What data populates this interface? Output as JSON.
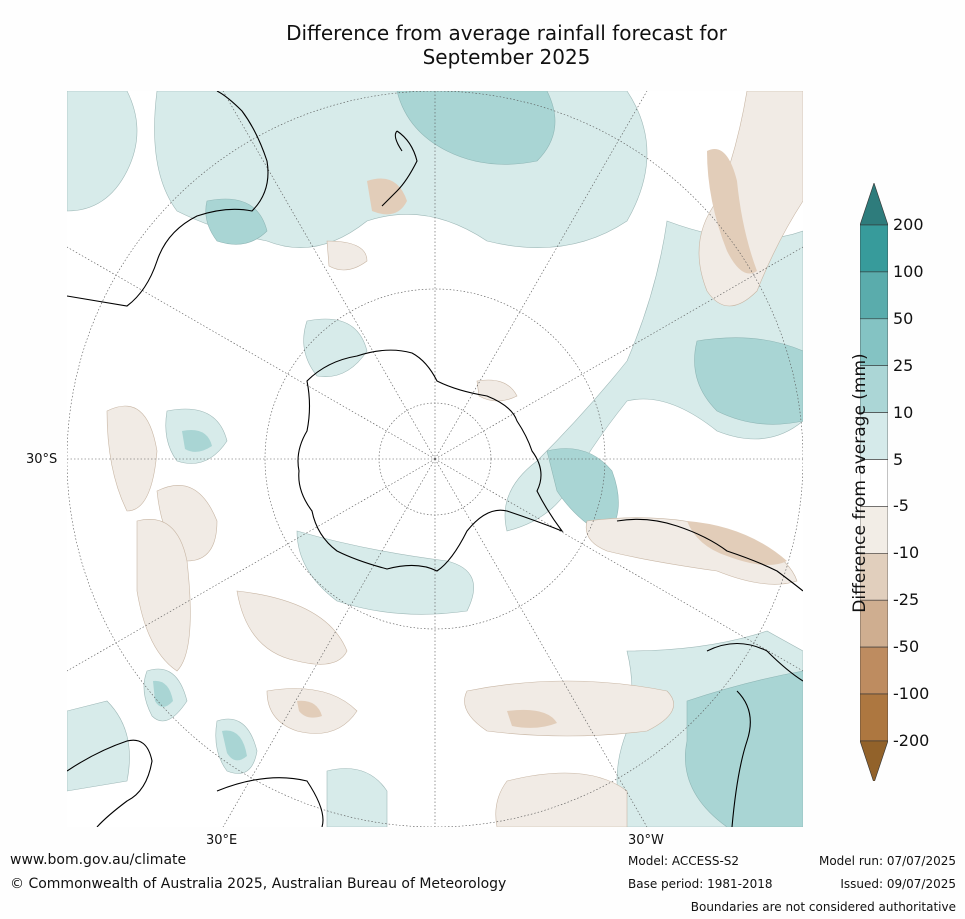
{
  "title": {
    "line1": "Difference from average rainfall forecast for",
    "line2": "September 2025"
  },
  "map": {
    "lat_label_left": "30°S",
    "lon_label_bottom_left": "30°E",
    "lon_label_bottom_right": "30°W",
    "colors": {
      "land_outline": "#000000",
      "grid": "#555555",
      "wet_light": "#d7ebea",
      "wet_mid": "#a9d5d4",
      "wet_strong": "#82c2c2",
      "dry_light": "#f1ebe5",
      "dry_mid": "#e2cdb9"
    }
  },
  "colorbar": {
    "title": "Difference from average (mm)",
    "ticks": [
      "200",
      "100",
      "50",
      "25",
      "10",
      "5",
      "-5",
      "-10",
      "-25",
      "-50",
      "-100",
      "-200"
    ],
    "colors": [
      "#2e7c7c",
      "#379b9b",
      "#5aacac",
      "#84c3c3",
      "#abd6d6",
      "#d5eaea",
      "#ffffff",
      "#f2ede6",
      "#e1cfbd",
      "#cfae90",
      "#be8c60",
      "#ad7740",
      "#92622a"
    ]
  },
  "footer": {
    "website": "www.bom.gov.au/climate",
    "copyright": "© Commonwealth of Australia 2025, Australian Bureau of Meteorology",
    "model": "Model: ACCESS-S2",
    "base_period": "Base period: 1981-2018",
    "model_run": "Model run: 07/07/2025",
    "issued": "Issued: 09/07/2025",
    "disclaimer": "Boundaries are not considered authoritative"
  }
}
